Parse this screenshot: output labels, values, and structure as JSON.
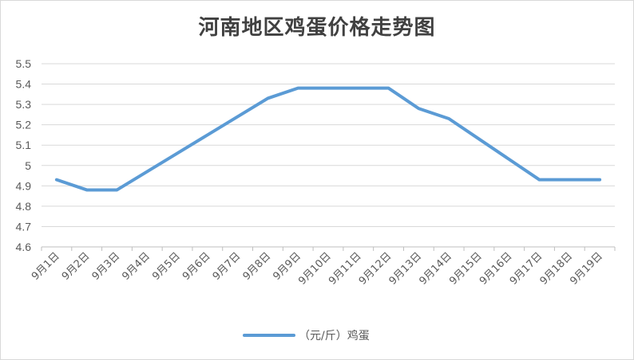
{
  "chart_data": {
    "type": "line",
    "title": "河南地区鸡蛋价格走势图",
    "categories": [
      "9月1日",
      "9月2日",
      "9月3日",
      "9月4日",
      "9月5日",
      "9月6日",
      "9月7日",
      "9月8日",
      "9月9日",
      "9月10日",
      "9月11日",
      "9月12日",
      "9月13日",
      "9月14日",
      "9月15日",
      "9月16日",
      "9月17日",
      "9月18日",
      "9月19日"
    ],
    "series": [
      {
        "name": "（元/斤）鸡蛋",
        "color": "#5b9bd5",
        "values": [
          4.93,
          4.88,
          4.88,
          4.97,
          5.06,
          5.15,
          5.24,
          5.33,
          5.38,
          5.38,
          5.38,
          5.38,
          5.28,
          5.23,
          5.13,
          5.03,
          4.93,
          4.93,
          4.93
        ]
      }
    ],
    "y_ticks": [
      "4.6",
      "4.7",
      "4.8",
      "4.9",
      "5",
      "5.1",
      "5.2",
      "5.3",
      "5.4",
      "5.5"
    ],
    "ylim": [
      4.6,
      5.5
    ],
    "xlabel": "",
    "ylabel": "",
    "grid": true,
    "legend_position": "bottom"
  }
}
